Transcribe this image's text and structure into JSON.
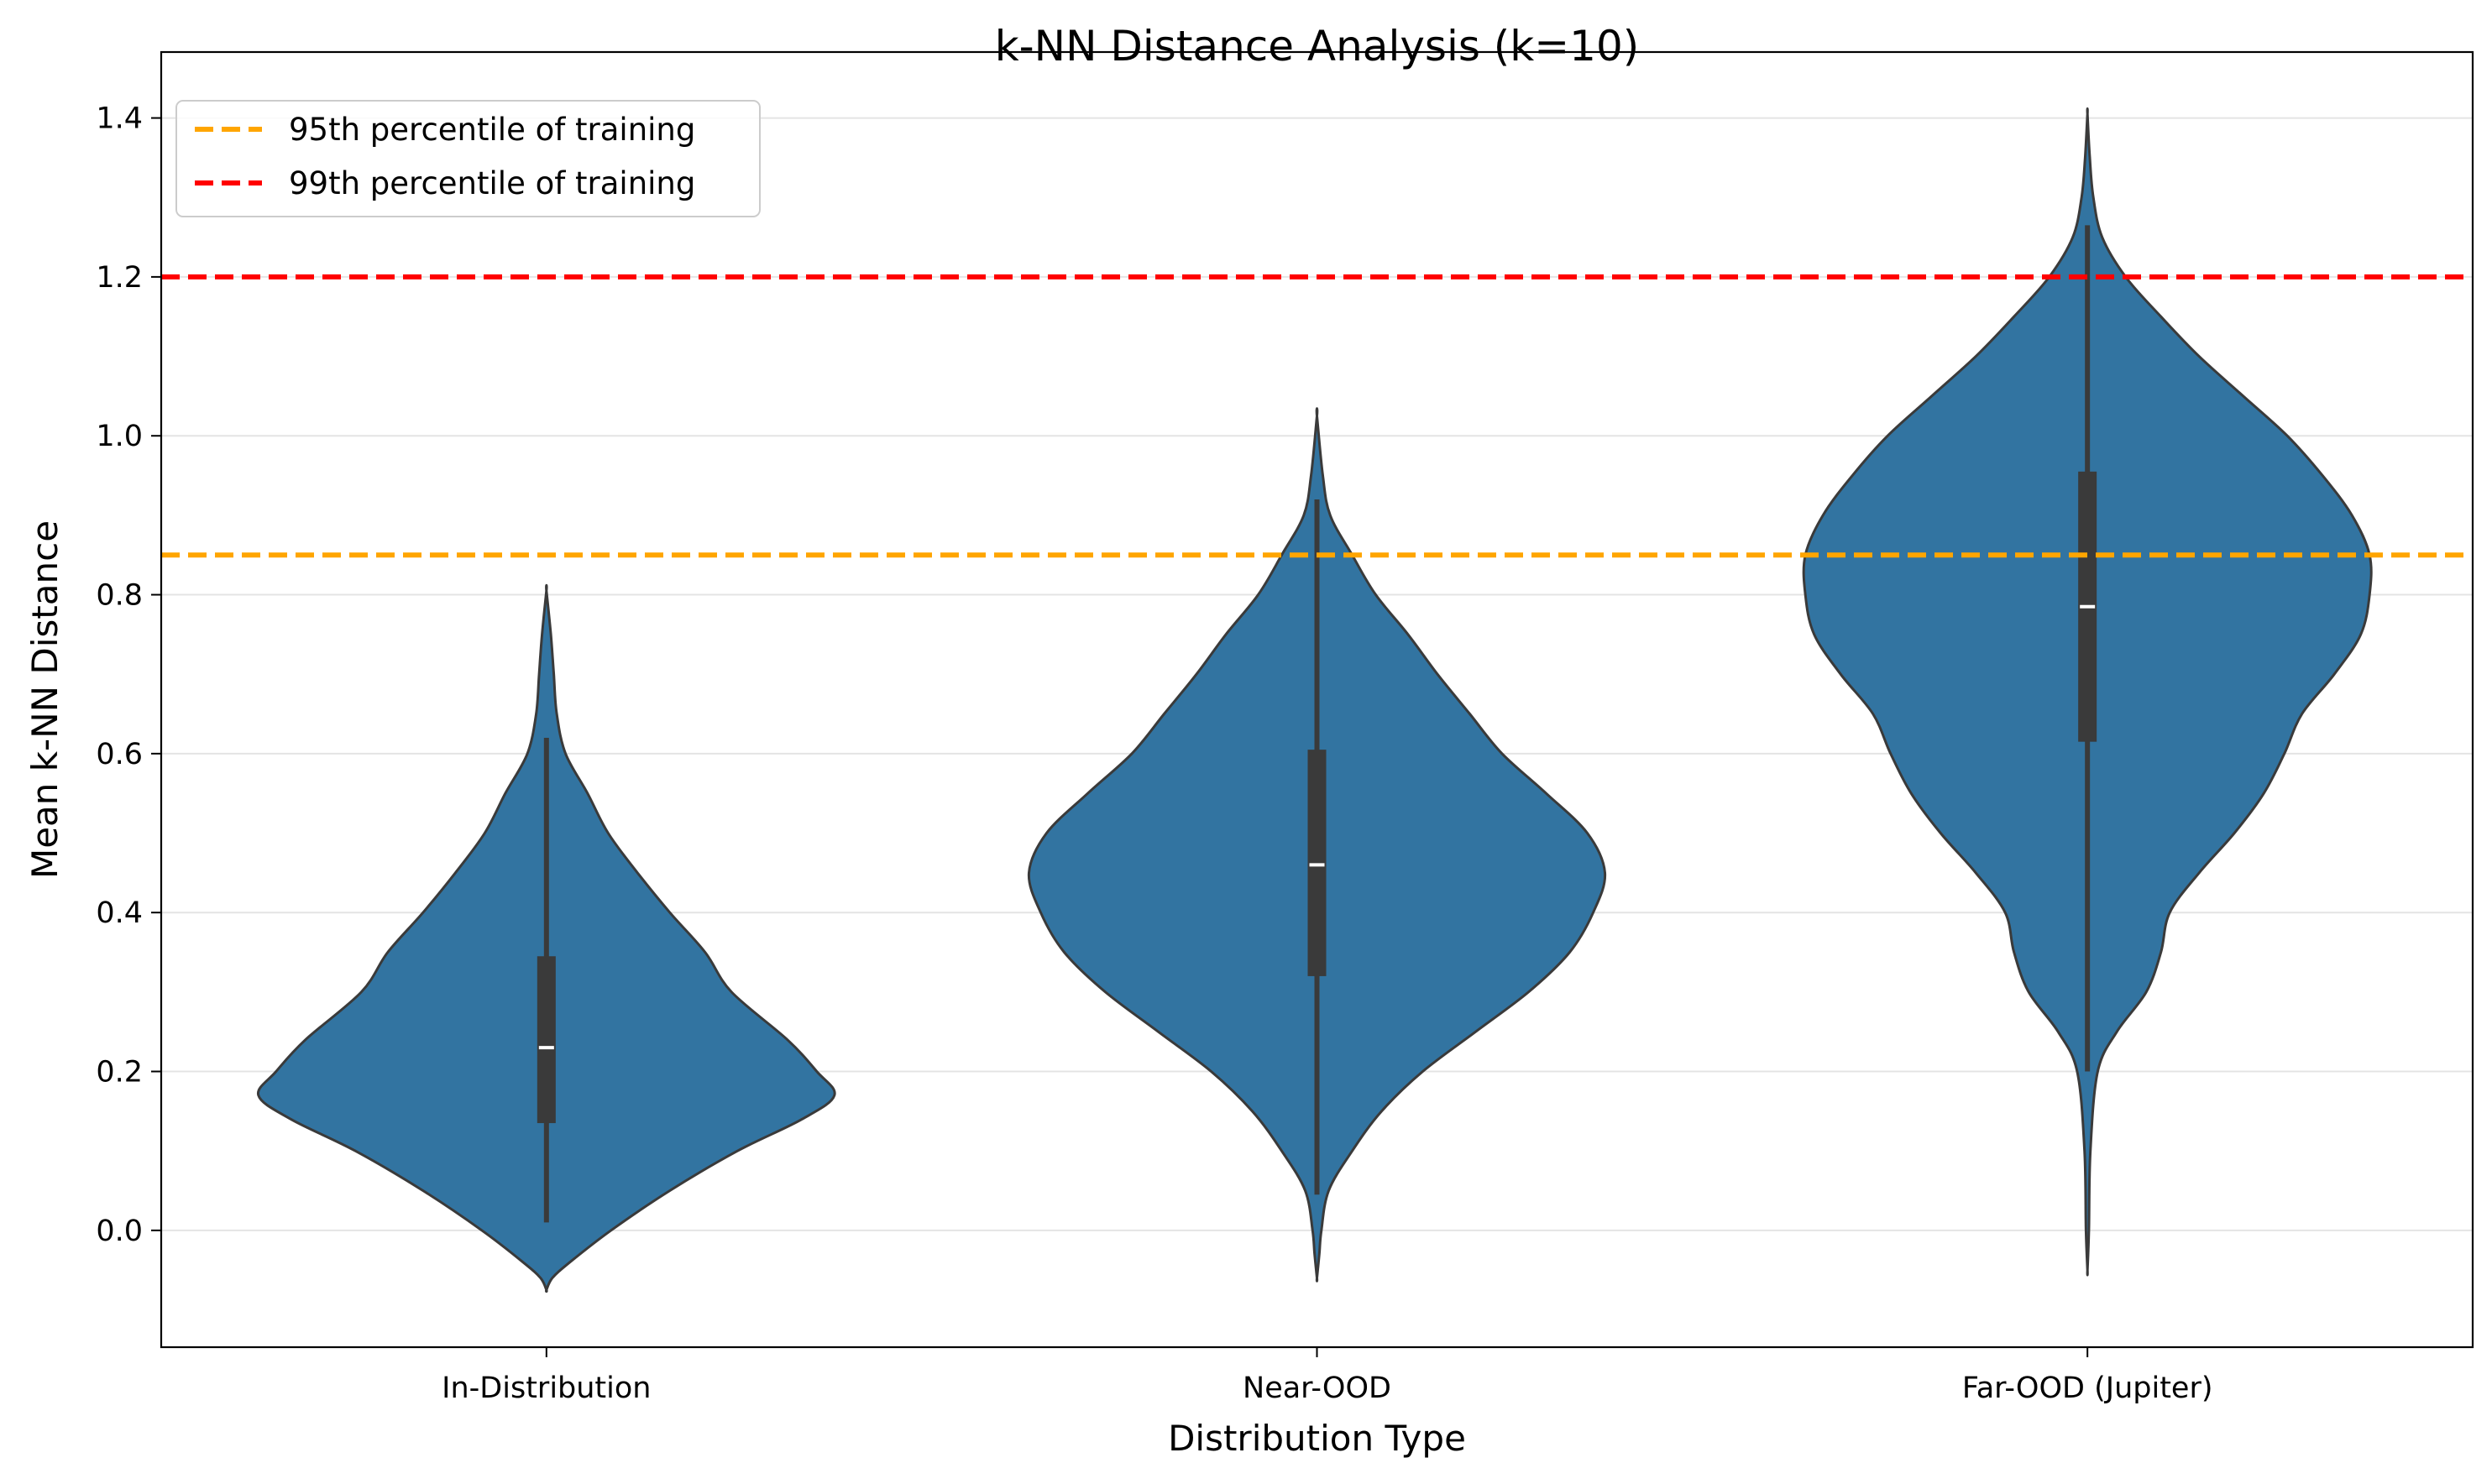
{
  "chart_data": {
    "type": "violin",
    "title": "k-NN Distance Analysis (k=10)",
    "xlabel": "Distribution Type",
    "ylabel": "Mean k-NN Distance",
    "ylim": [
      -0.147,
      1.483
    ],
    "yticks": [
      0.0,
      0.2,
      0.4,
      0.6,
      0.8,
      1.0,
      1.2,
      1.4
    ],
    "ytick_labels": [
      "0.0",
      "0.2",
      "0.4",
      "0.6",
      "0.8",
      "1.0",
      "1.2",
      "1.4"
    ],
    "grid": "y",
    "legend_placement": "top-left",
    "categories": [
      "In-Distribution",
      "Near-OOD",
      "Far-OOD (Jupiter)"
    ],
    "fill_color": "#3274a1",
    "edge_color": "#3a3a3a",
    "violins": [
      {
        "category": "In-Distribution",
        "min": 0.01,
        "q1": 0.135,
        "median": 0.23,
        "q3": 0.345,
        "max": 0.62,
        "profile": [
          [
            -0.075,
            0.0
          ],
          [
            -0.06,
            0.02
          ],
          [
            -0.04,
            0.08
          ],
          [
            0.0,
            0.22
          ],
          [
            0.05,
            0.42
          ],
          [
            0.1,
            0.65
          ],
          [
            0.14,
            0.87
          ],
          [
            0.17,
            0.98
          ],
          [
            0.2,
            0.92
          ],
          [
            0.24,
            0.82
          ],
          [
            0.3,
            0.63
          ],
          [
            0.35,
            0.54
          ],
          [
            0.4,
            0.42
          ],
          [
            0.45,
            0.31
          ],
          [
            0.5,
            0.21
          ],
          [
            0.55,
            0.14
          ],
          [
            0.6,
            0.065
          ],
          [
            0.65,
            0.035
          ],
          [
            0.7,
            0.025
          ],
          [
            0.75,
            0.015
          ],
          [
            0.805,
            0.0
          ]
        ]
      },
      {
        "category": "Near-OOD",
        "min": 0.045,
        "q1": 0.32,
        "median": 0.46,
        "q3": 0.605,
        "max": 0.92,
        "profile": [
          [
            -0.06,
            0.0
          ],
          [
            -0.03,
            0.008
          ],
          [
            0.0,
            0.015
          ],
          [
            0.05,
            0.04
          ],
          [
            0.1,
            0.12
          ],
          [
            0.15,
            0.22
          ],
          [
            0.2,
            0.36
          ],
          [
            0.25,
            0.54
          ],
          [
            0.3,
            0.72
          ],
          [
            0.35,
            0.86
          ],
          [
            0.4,
            0.94
          ],
          [
            0.45,
            0.98
          ],
          [
            0.5,
            0.92
          ],
          [
            0.55,
            0.78
          ],
          [
            0.6,
            0.63
          ],
          [
            0.65,
            0.52
          ],
          [
            0.7,
            0.41
          ],
          [
            0.75,
            0.31
          ],
          [
            0.8,
            0.2
          ],
          [
            0.85,
            0.12
          ],
          [
            0.9,
            0.045
          ],
          [
            0.95,
            0.02
          ],
          [
            1.025,
            0.0
          ]
        ]
      },
      {
        "category": "Far-OOD (Jupiter)",
        "min": 0.2,
        "q1": 0.615,
        "median": 0.785,
        "q3": 0.955,
        "max": 1.265,
        "profile": [
          [
            -0.05,
            0.0
          ],
          [
            0.0,
            0.005
          ],
          [
            0.1,
            0.01
          ],
          [
            0.2,
            0.035
          ],
          [
            0.25,
            0.1
          ],
          [
            0.3,
            0.2
          ],
          [
            0.35,
            0.25
          ],
          [
            0.4,
            0.28
          ],
          [
            0.45,
            0.38
          ],
          [
            0.5,
            0.5
          ],
          [
            0.55,
            0.6
          ],
          [
            0.6,
            0.67
          ],
          [
            0.65,
            0.73
          ],
          [
            0.7,
            0.84
          ],
          [
            0.75,
            0.93
          ],
          [
            0.8,
            0.96
          ],
          [
            0.85,
            0.96
          ],
          [
            0.9,
            0.9
          ],
          [
            0.95,
            0.8
          ],
          [
            1.0,
            0.68
          ],
          [
            1.05,
            0.53
          ],
          [
            1.1,
            0.38
          ],
          [
            1.15,
            0.25
          ],
          [
            1.2,
            0.13
          ],
          [
            1.25,
            0.05
          ],
          [
            1.3,
            0.02
          ],
          [
            1.35,
            0.008
          ],
          [
            1.405,
            0.0
          ]
        ]
      }
    ],
    "reference_lines": [
      {
        "label": "95th percentile of training",
        "value": 0.85,
        "color": "#ffa500"
      },
      {
        "label": "99th percentile of training",
        "value": 1.2,
        "color": "#ff0000"
      }
    ]
  }
}
